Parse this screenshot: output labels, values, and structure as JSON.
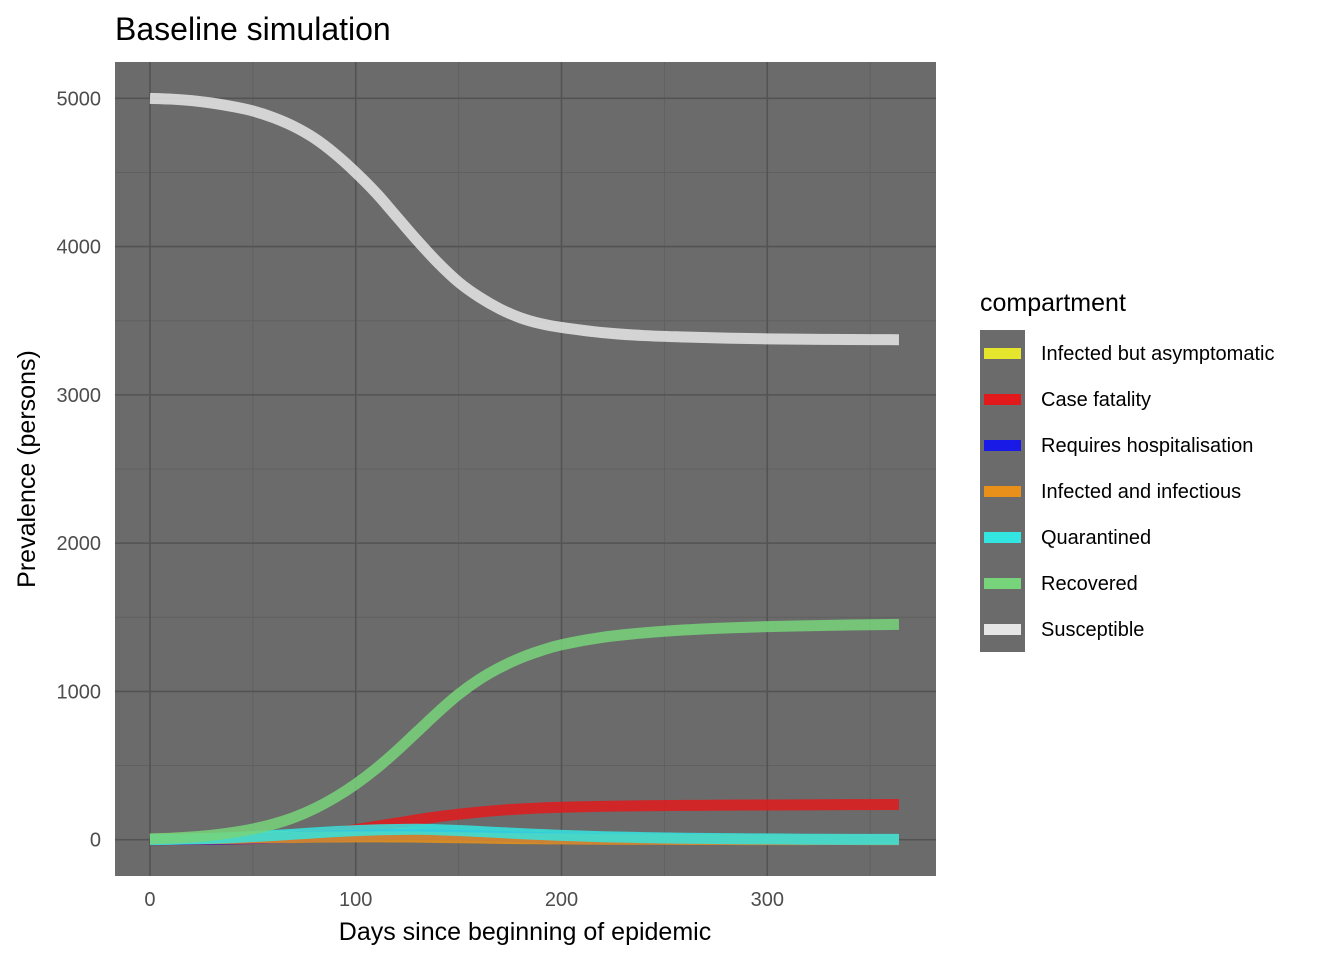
{
  "chart_data": {
    "type": "line",
    "title": "Baseline simulation",
    "xlabel": "Days since beginning of epidemic",
    "ylabel": "Prevalence (persons)",
    "xlim": [
      -17,
      382
    ],
    "ylim": [
      -245,
      5245
    ],
    "x_ticks": [
      0,
      100,
      200,
      300
    ],
    "y_ticks": [
      0,
      1000,
      2000,
      3000,
      4000,
      5000
    ],
    "x_tick_labels": [
      "0",
      "100",
      "200",
      "300"
    ],
    "y_tick_labels": [
      "0",
      "1000",
      "2000",
      "3000",
      "4000",
      "5000"
    ],
    "grid": true,
    "background": "#6b6b6b",
    "legend": {
      "title": "compartment",
      "position": "right"
    },
    "x": [
      0,
      10,
      20,
      30,
      40,
      50,
      60,
      70,
      80,
      90,
      100,
      110,
      120,
      130,
      140,
      150,
      160,
      170,
      180,
      190,
      200,
      220,
      240,
      260,
      280,
      300,
      320,
      340,
      364
    ],
    "series": [
      {
        "name": "Infected but asymptomatic",
        "color": "#e5e52e",
        "values": [
          2,
          3,
          5,
          7,
          10,
          14,
          18,
          23,
          28,
          32,
          35,
          37,
          38,
          37,
          35,
          31,
          27,
          23,
          19,
          16,
          13,
          8,
          5,
          3,
          2,
          1,
          1,
          1,
          0
        ]
      },
      {
        "name": "Case fatality",
        "color": "#e31a1c",
        "values": [
          0,
          0,
          1,
          2,
          4,
          7,
          12,
          20,
          32,
          48,
          68,
          90,
          112,
          135,
          155,
          172,
          186,
          198,
          207,
          214,
          219,
          225,
          229,
          231,
          233,
          234,
          235,
          236,
          237
        ]
      },
      {
        "name": "Requires hospitalisation",
        "color": "#1a1ae6",
        "values": [
          0,
          1,
          2,
          3,
          5,
          8,
          12,
          16,
          21,
          26,
          30,
          33,
          35,
          35,
          34,
          31,
          27,
          23,
          19,
          15,
          12,
          7,
          4,
          3,
          2,
          1,
          1,
          0,
          0
        ]
      },
      {
        "name": "Infected and infectious",
        "color": "#e8901a",
        "values": [
          3,
          4,
          5,
          7,
          9,
          11,
          13,
          15,
          17,
          18,
          19,
          19,
          18,
          17,
          15,
          13,
          11,
          9,
          7,
          6,
          5,
          3,
          2,
          1,
          1,
          0,
          0,
          0,
          0
        ]
      },
      {
        "name": "Quarantined",
        "color": "#33e5e0",
        "values": [
          0,
          2,
          5,
          9,
          14,
          21,
          28,
          37,
          46,
          54,
          61,
          66,
          69,
          70,
          67,
          62,
          55,
          48,
          41,
          35,
          29,
          20,
          14,
          10,
          7,
          5,
          3,
          2,
          2
        ]
      },
      {
        "name": "Recovered",
        "color": "#77d47a",
        "values": [
          5,
          10,
          18,
          30,
          48,
          72,
          105,
          150,
          210,
          285,
          375,
          480,
          600,
          730,
          860,
          980,
          1080,
          1160,
          1225,
          1275,
          1315,
          1365,
          1395,
          1415,
          1428,
          1437,
          1443,
          1448,
          1452
        ]
      },
      {
        "name": "Susceptible",
        "color": "#e6e6e6",
        "values": [
          5000,
          4995,
          4985,
          4968,
          4945,
          4915,
          4870,
          4810,
          4730,
          4625,
          4500,
          4360,
          4200,
          4040,
          3890,
          3760,
          3660,
          3580,
          3520,
          3480,
          3455,
          3420,
          3400,
          3390,
          3383,
          3378,
          3375,
          3373,
          3372
        ]
      }
    ]
  }
}
